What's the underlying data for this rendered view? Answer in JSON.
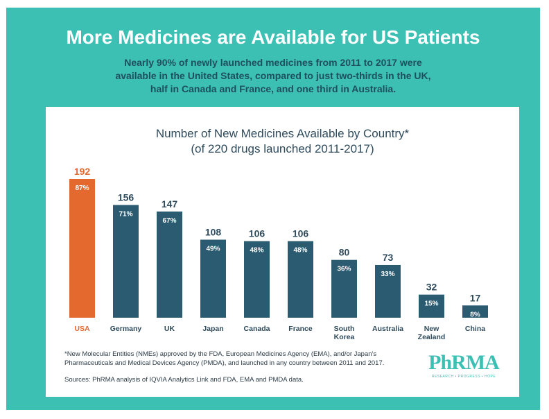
{
  "header": {
    "title": "More Medicines are Available for US Patients",
    "subtitle": "Nearly 90% of newly launched medicines from 2011 to 2017 were available in the United States, compared to just two-thirds in the UK, half in Canada and France, and one third in Australia."
  },
  "chart_data": {
    "type": "bar",
    "title": "Number of New Medicines Available by Country*",
    "subtitle": "(of 220 drugs launched 2011-2017)",
    "categories": [
      "USA",
      "Germany",
      "UK",
      "Japan",
      "Canada",
      "France",
      "South Korea",
      "Australia",
      "New Zealand",
      "China"
    ],
    "category_lines": [
      [
        "USA"
      ],
      [
        "Germany"
      ],
      [
        "UK"
      ],
      [
        "Japan"
      ],
      [
        "Canada"
      ],
      [
        "France"
      ],
      [
        "South",
        "Korea"
      ],
      [
        "Australia"
      ],
      [
        "New",
        "Zealand"
      ],
      [
        "China"
      ]
    ],
    "values": [
      192,
      156,
      147,
      108,
      106,
      106,
      80,
      73,
      32,
      17
    ],
    "percent_labels": [
      "87%",
      "71%",
      "67%",
      "49%",
      "48%",
      "48%",
      "36%",
      "33%",
      "15%",
      "8%"
    ],
    "ylim": [
      0,
      192
    ],
    "highlight_index": 0,
    "colors": {
      "highlight": "#e4692f",
      "bar": "#2b5b70",
      "value_text": "#2e4a5b",
      "percent_text": "#ffffff"
    }
  },
  "footer": {
    "footnote": "*New Molecular Entities (NMEs) approved by the FDA, European Medicines Agency (EMA), and/or Japan's Pharmaceuticals and Medical Devices Agency (PMDA), and launched in any country between 2011 and 2017.",
    "sources": "Sources: PhRMA analysis of IQVIA Analytics Link and FDA, EMA and PMDA data."
  },
  "logo": {
    "text": "PhRMA",
    "tagline": "RESEARCH • PROGRESS • HOPE"
  }
}
